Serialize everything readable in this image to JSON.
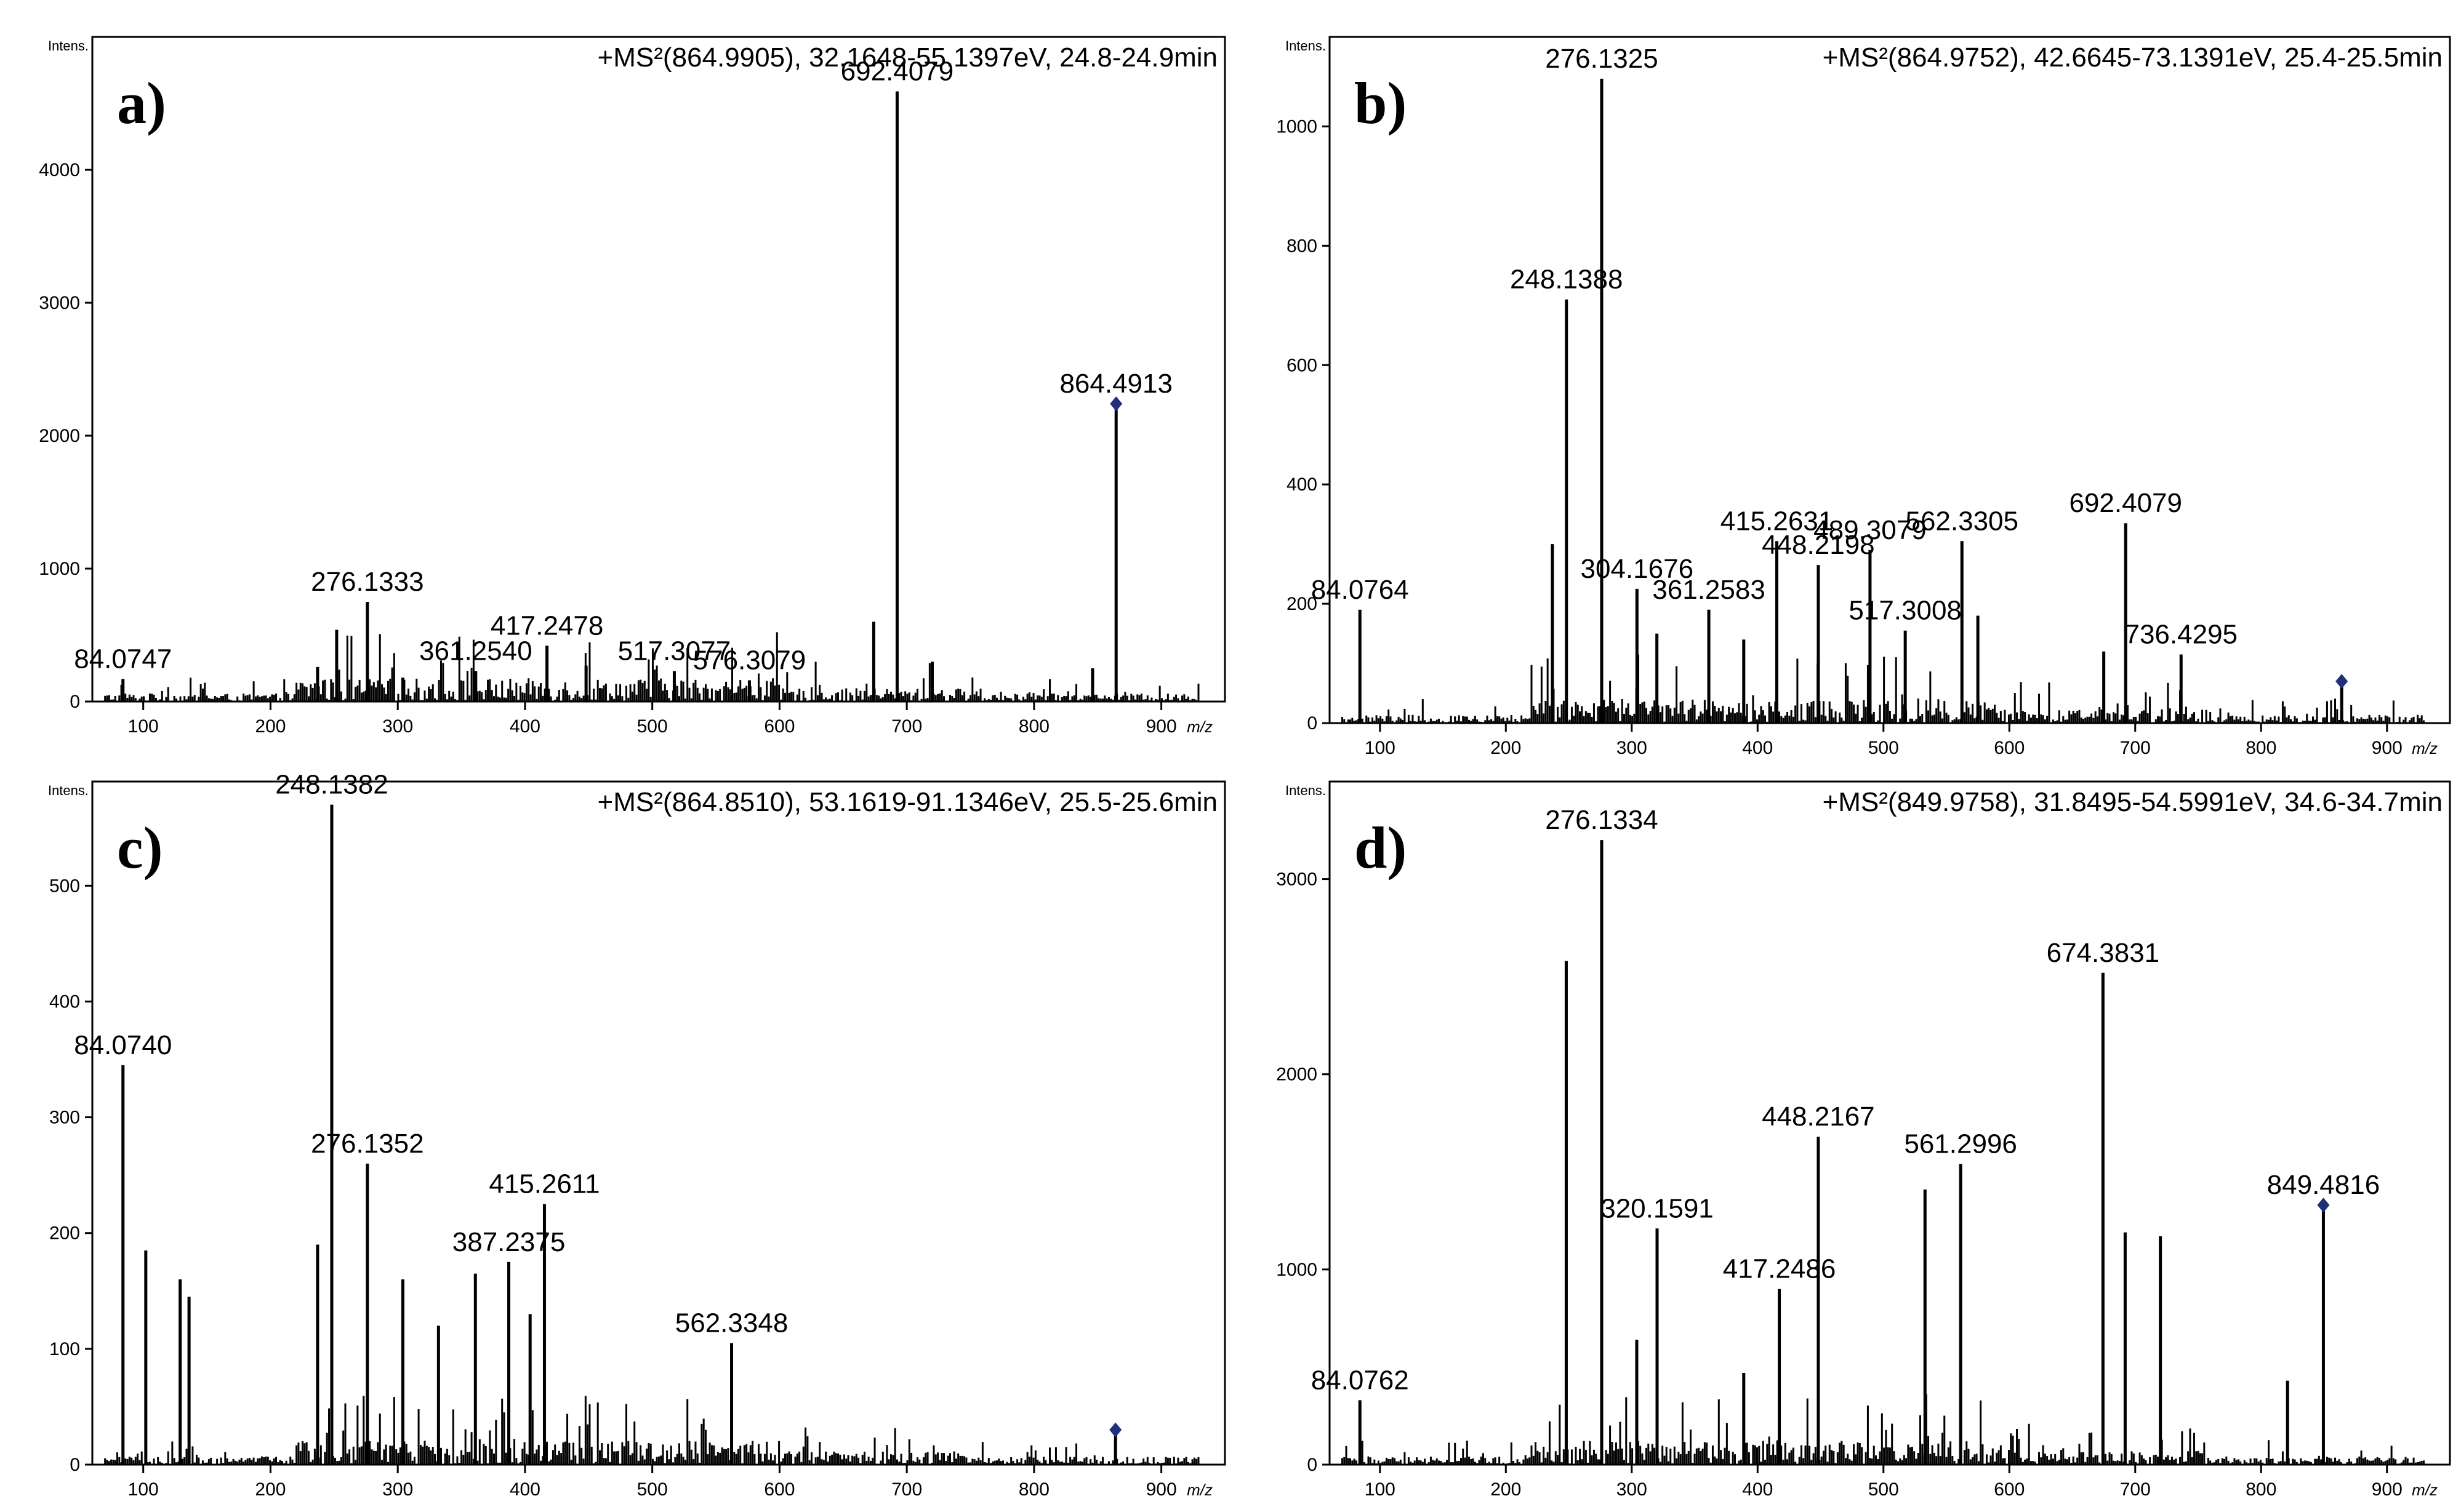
{
  "chart_data": [
    {
      "type": "bar",
      "panel_label": "a)",
      "y_axis_title": "Intens.",
      "x_axis_title": "m/z",
      "header": "+MS²(864.9905), 32.1648-55.1397eV, 24.8-24.9min",
      "xlim": [
        60,
        950
      ],
      "ylim": [
        0,
        5000
      ],
      "xticks": [
        100,
        200,
        300,
        400,
        500,
        600,
        700,
        800,
        900
      ],
      "yticks": [
        0,
        1000,
        2000,
        3000,
        4000
      ],
      "peaks": [
        {
          "mz": 84.0747,
          "intensity": 170,
          "label": "84.0747"
        },
        {
          "mz": 237,
          "intensity": 260
        },
        {
          "mz": 252,
          "intensity": 540
        },
        {
          "mz": 276.1333,
          "intensity": 750,
          "label": "276.1333"
        },
        {
          "mz": 304,
          "intensity": 180
        },
        {
          "mz": 361.254,
          "intensity": 230,
          "label": "361.2540"
        },
        {
          "mz": 417.2478,
          "intensity": 420,
          "label": "417.2478"
        },
        {
          "mz": 448,
          "intensity": 270
        },
        {
          "mz": 517.3077,
          "intensity": 230,
          "label": "517.3077"
        },
        {
          "mz": 576.3079,
          "intensity": 160,
          "label": "576.3079"
        },
        {
          "mz": 674,
          "intensity": 600
        },
        {
          "mz": 692.4079,
          "intensity": 4590,
          "label": "692.4079"
        },
        {
          "mz": 720,
          "intensity": 300
        },
        {
          "mz": 846,
          "intensity": 250
        },
        {
          "mz": 864.4913,
          "intensity": 2240,
          "label": "864.4913",
          "precursor": true
        }
      ]
    },
    {
      "type": "bar",
      "panel_label": "b)",
      "y_axis_title": "Intens.",
      "x_axis_title": "m/z",
      "header": "+MS²(864.9752), 42.6645-73.1391eV, 25.4-25.5min",
      "xlim": [
        60,
        950
      ],
      "ylim": [
        0,
        1150
      ],
      "xticks": [
        100,
        200,
        300,
        400,
        500,
        600,
        700,
        800,
        900
      ],
      "yticks": [
        0,
        200,
        400,
        600,
        800,
        1000
      ],
      "peaks": [
        {
          "mz": 84.0764,
          "intensity": 190,
          "label": "84.0764"
        },
        {
          "mz": 237,
          "intensity": 300
        },
        {
          "mz": 248.1388,
          "intensity": 710,
          "label": "248.1388"
        },
        {
          "mz": 276.1325,
          "intensity": 1080,
          "label": "276.1325"
        },
        {
          "mz": 304.1676,
          "intensity": 225,
          "label": "304.1676"
        },
        {
          "mz": 320,
          "intensity": 150
        },
        {
          "mz": 361.2583,
          "intensity": 190,
          "label": "361.2583"
        },
        {
          "mz": 389,
          "intensity": 140
        },
        {
          "mz": 415.2631,
          "intensity": 305,
          "label": "415.2631"
        },
        {
          "mz": 448.2198,
          "intensity": 265,
          "label": "448.2198"
        },
        {
          "mz": 489.3079,
          "intensity": 290,
          "label": "489.3079"
        },
        {
          "mz": 517.3008,
          "intensity": 155,
          "label": "517.3008"
        },
        {
          "mz": 562.3305,
          "intensity": 305,
          "label": "562.3305"
        },
        {
          "mz": 575,
          "intensity": 180
        },
        {
          "mz": 692.4079,
          "intensity": 335,
          "label": "692.4079"
        },
        {
          "mz": 675,
          "intensity": 120
        },
        {
          "mz": 736.4295,
          "intensity": 115,
          "label": "736.4295"
        },
        {
          "mz": 864,
          "intensity": 70,
          "precursor": true
        }
      ]
    },
    {
      "type": "bar",
      "panel_label": "c)",
      "y_axis_title": "Intens.",
      "x_axis_title": "m/z",
      "header": "+MS²(864.8510), 53.1619-91.1346eV, 25.5-25.6min",
      "xlim": [
        60,
        950
      ],
      "ylim": [
        0,
        590
      ],
      "xticks": [
        100,
        200,
        300,
        400,
        500,
        600,
        700,
        800,
        900
      ],
      "yticks": [
        0,
        100,
        200,
        300,
        400,
        500
      ],
      "peaks": [
        {
          "mz": 84.074,
          "intensity": 345,
          "label": "84.0740"
        },
        {
          "mz": 102,
          "intensity": 185
        },
        {
          "mz": 129,
          "intensity": 160
        },
        {
          "mz": 136,
          "intensity": 145
        },
        {
          "mz": 237,
          "intensity": 190
        },
        {
          "mz": 248.1382,
          "intensity": 570,
          "label": "248.1382"
        },
        {
          "mz": 276.1352,
          "intensity": 260,
          "label": "276.1352"
        },
        {
          "mz": 304,
          "intensity": 160
        },
        {
          "mz": 332,
          "intensity": 120
        },
        {
          "mz": 361,
          "intensity": 165
        },
        {
          "mz": 387.2375,
          "intensity": 175,
          "label": "387.2375"
        },
        {
          "mz": 404,
          "intensity": 130
        },
        {
          "mz": 415.2611,
          "intensity": 225,
          "label": "415.2611"
        },
        {
          "mz": 562.3348,
          "intensity": 105,
          "label": "562.3348"
        },
        {
          "mz": 864,
          "intensity": 30,
          "precursor": true
        }
      ]
    },
    {
      "type": "bar",
      "panel_label": "d)",
      "y_axis_title": "Intens.",
      "x_axis_title": "m/z",
      "header": "+MS²(849.9758), 31.8495-54.5991eV, 34.6-34.7min",
      "xlim": [
        60,
        950
      ],
      "ylim": [
        0,
        3500
      ],
      "xticks": [
        100,
        200,
        300,
        400,
        500,
        600,
        700,
        800,
        900
      ],
      "yticks": [
        0,
        1000,
        2000,
        3000
      ],
      "peaks": [
        {
          "mz": 84.0762,
          "intensity": 330,
          "label": "84.0762"
        },
        {
          "mz": 248,
          "intensity": 2580
        },
        {
          "mz": 276.1334,
          "intensity": 3200,
          "label": "276.1334"
        },
        {
          "mz": 304,
          "intensity": 640
        },
        {
          "mz": 320.1591,
          "intensity": 1210,
          "label": "320.1591"
        },
        {
          "mz": 389,
          "intensity": 470
        },
        {
          "mz": 417.2486,
          "intensity": 900,
          "label": "417.2486"
        },
        {
          "mz": 448.2167,
          "intensity": 1680,
          "label": "448.2167"
        },
        {
          "mz": 533,
          "intensity": 1410
        },
        {
          "mz": 561.2996,
          "intensity": 1540,
          "label": "561.2996"
        },
        {
          "mz": 674.3831,
          "intensity": 2520,
          "label": "674.3831"
        },
        {
          "mz": 692,
          "intensity": 1190
        },
        {
          "mz": 720,
          "intensity": 1170
        },
        {
          "mz": 821,
          "intensity": 430
        },
        {
          "mz": 849.4816,
          "intensity": 1330,
          "label": "849.4816",
          "precursor": true
        }
      ]
    }
  ]
}
